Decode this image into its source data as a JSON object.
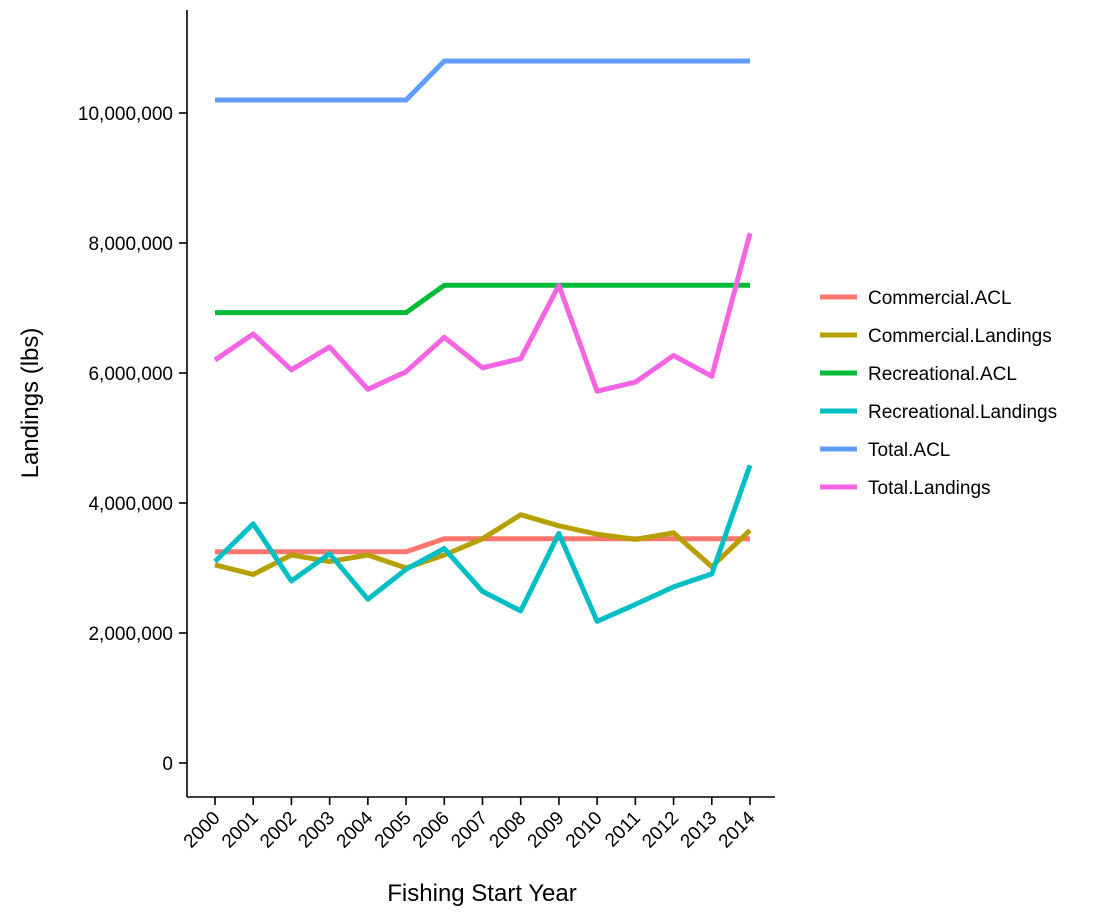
{
  "chart_data": {
    "type": "line",
    "title": "",
    "xlabel": "Fishing Start Year",
    "ylabel": "Landings (lbs)",
    "x": [
      "2000",
      "2001",
      "2002",
      "2003",
      "2004",
      "2005",
      "2006",
      "2007",
      "2008",
      "2009",
      "2010",
      "2011",
      "2012",
      "2013",
      "2014"
    ],
    "ylim": [
      -500000,
      11600000
    ],
    "yticks": [
      0,
      2000000,
      4000000,
      6000000,
      8000000,
      10000000
    ],
    "ytick_labels": [
      "0",
      "2,000,000",
      "4,000,000",
      "6,000,000",
      "8,000,000",
      "10,000,000"
    ],
    "grid": false,
    "legend": "right",
    "series": [
      {
        "name": "Commercial.ACL",
        "color": "#F8766D",
        "values": [
          3250000,
          3250000,
          3250000,
          3250000,
          3250000,
          3250000,
          3450000,
          3450000,
          3450000,
          3450000,
          3450000,
          3450000,
          3450000,
          3450000,
          3450000
        ]
      },
      {
        "name": "Commercial.Landings",
        "color": "#B79F00",
        "values": [
          3050000,
          2900000,
          3200000,
          3100000,
          3200000,
          3000000,
          3200000,
          3450000,
          3820000,
          3650000,
          3520000,
          3440000,
          3540000,
          3020000,
          3580000
        ]
      },
      {
        "name": "Recreational.ACL",
        "color": "#00BA38",
        "values": [
          6930000,
          6930000,
          6930000,
          6930000,
          6930000,
          6930000,
          7350000,
          7350000,
          7350000,
          7350000,
          7350000,
          7350000,
          7350000,
          7350000,
          7350000
        ]
      },
      {
        "name": "Recreational.Landings",
        "color": "#00BFC4",
        "values": [
          3100000,
          3680000,
          2800000,
          3220000,
          2520000,
          2980000,
          3300000,
          2640000,
          2340000,
          3530000,
          2180000,
          2440000,
          2710000,
          2910000,
          4580000
        ]
      },
      {
        "name": "Total.ACL",
        "color": "#619CFF",
        "values": [
          10200000,
          10200000,
          10200000,
          10200000,
          10200000,
          10200000,
          10800000,
          10800000,
          10800000,
          10800000,
          10800000,
          10800000,
          10800000,
          10800000,
          10800000
        ]
      },
      {
        "name": "Total.Landings",
        "color": "#F564E3",
        "values": [
          6200000,
          6600000,
          6050000,
          6400000,
          5750000,
          6020000,
          6550000,
          6080000,
          6220000,
          7350000,
          5720000,
          5860000,
          6270000,
          5950000,
          8150000
        ]
      }
    ]
  }
}
